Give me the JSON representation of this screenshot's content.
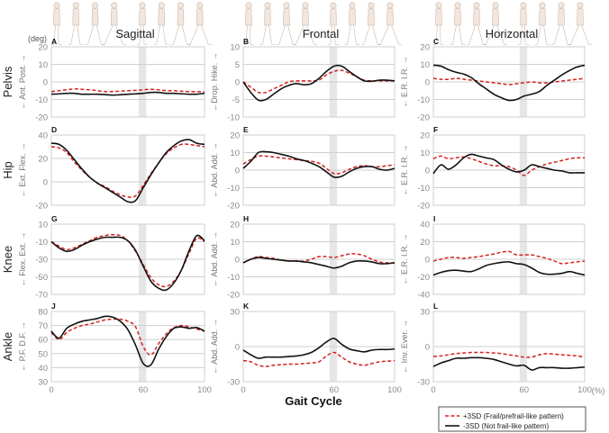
{
  "unit_label": "(deg)",
  "column_titles": [
    "Sagittal",
    "Frontal",
    "Horizontal"
  ],
  "row_labels": [
    "Pelvis",
    "Hip",
    "Knee",
    "Ankle"
  ],
  "xlabel": "Gait Cycle",
  "x_unit": "(%)",
  "legend": {
    "position": "bottom-right",
    "items": [
      {
        "label": "+3SD (Frail/prefrail-like pattern)",
        "color": "#d62020",
        "style": "dashed"
      },
      {
        "label": "-3SD (Not frail-like pattern)",
        "color": "#111111",
        "style": "solid"
      }
    ]
  },
  "colors": {
    "plus3sd": "#d62020",
    "minus3sd": "#111111",
    "shade": "#e6e6e6",
    "figure": "#f3e6dc"
  },
  "chart_data": {
    "type": "line",
    "x": [
      0,
      5,
      10,
      15,
      20,
      25,
      30,
      35,
      40,
      45,
      50,
      55,
      60,
      65,
      70,
      75,
      80,
      85,
      90,
      95,
      100
    ],
    "xlim": [
      0,
      100
    ],
    "xticks": [
      0,
      60,
      100
    ],
    "shaded_region": [
      57,
      62
    ],
    "panels": [
      {
        "letter": "A",
        "ylabel": "← Ant.   Post. →",
        "ylim": [
          -20,
          20
        ],
        "yticks": [
          -20,
          -10,
          0,
          10,
          20
        ],
        "plus3sd": [
          -5.5,
          -5,
          -4.5,
          -4,
          -4.2,
          -4.5,
          -5,
          -5.5,
          -5.5,
          -5.3,
          -5,
          -4.8,
          -4.5,
          -4.2,
          -4.5,
          -5,
          -5,
          -5.3,
          -5.5,
          -5.5,
          -5.8
        ],
        "minus3sd": [
          -7,
          -6.8,
          -6.5,
          -6.5,
          -7,
          -7,
          -7,
          -7.2,
          -7.5,
          -7.3,
          -7,
          -6.8,
          -6.5,
          -6,
          -6,
          -6.5,
          -6.5,
          -6.8,
          -7,
          -7,
          -6.5
        ]
      },
      {
        "letter": "B",
        "ylabel": "←Drop.  Hike. →",
        "ylim": [
          -10,
          10
        ],
        "yticks": [
          -10,
          -5,
          0,
          5,
          10
        ],
        "plus3sd": [
          0,
          -1.5,
          -3,
          -3,
          -2,
          -1,
          0,
          0.3,
          0.3,
          0.3,
          0.5,
          2,
          3,
          3.3,
          2.5,
          1.5,
          0.5,
          0.3,
          0.3,
          0.3,
          0.3
        ],
        "minus3sd": [
          0,
          -3,
          -5.2,
          -5,
          -3.5,
          -2,
          -1,
          -0.5,
          -0.8,
          -0.5,
          1,
          3,
          4.5,
          4.5,
          3,
          1.5,
          0.3,
          0.2,
          0.5,
          0.5,
          0.3
        ]
      },
      {
        "letter": "C",
        "ylabel": "← E.R.  I.R. →",
        "ylim": [
          -20,
          20
        ],
        "yticks": [
          -20,
          -10,
          0,
          10,
          20
        ],
        "plus3sd": [
          2,
          1.5,
          1.5,
          2,
          1.5,
          1,
          0.5,
          0,
          -0.5,
          -1,
          -1.5,
          -1,
          -0.5,
          0,
          -0.5,
          -0.5,
          0,
          0.5,
          1,
          1.5,
          2
        ],
        "minus3sd": [
          9.5,
          9,
          7,
          5.5,
          4.5,
          2.5,
          -1,
          -4,
          -7,
          -9,
          -10.5,
          -10,
          -8,
          -7,
          -5.5,
          -2,
          1,
          4,
          6.5,
          8.5,
          9.5
        ]
      },
      {
        "letter": "D",
        "ylabel": "← Ext.  Flex. →",
        "ylim": [
          -20,
          40
        ],
        "yticks": [
          -20,
          0,
          20,
          40
        ],
        "plus3sd": [
          30,
          29,
          25,
          17,
          10,
          4,
          -1,
          -4,
          -8,
          -11,
          -13,
          -12,
          -3,
          7,
          16,
          24,
          29,
          32,
          32,
          31,
          30
        ],
        "minus3sd": [
          33,
          32,
          27,
          19,
          11,
          4,
          -1,
          -5,
          -9,
          -13,
          -17,
          -16,
          -5,
          6,
          16,
          25,
          31,
          35,
          36,
          33,
          32
        ]
      },
      {
        "letter": "E",
        "ylabel": "← Abd.  Add. →",
        "ylim": [
          -20,
          20
        ],
        "yticks": [
          -20,
          -10,
          0,
          10,
          20
        ],
        "plus3sd": [
          3.5,
          6,
          8,
          8,
          7.5,
          7,
          6.5,
          6,
          5.5,
          5,
          4,
          1,
          -2,
          -1.5,
          0.5,
          2,
          2.5,
          2,
          2,
          2.5,
          3
        ],
        "minus3sd": [
          1,
          5,
          10,
          10.5,
          10,
          9,
          8,
          6.5,
          5.5,
          4,
          2,
          -1,
          -4,
          -3.5,
          -1,
          1,
          2,
          2,
          0.5,
          0,
          1
        ]
      },
      {
        "letter": "F",
        "ylabel": "← E.R.  I.R. →",
        "ylim": [
          -20,
          20
        ],
        "yticks": [
          -20,
          -10,
          0,
          10,
          20
        ],
        "plus3sd": [
          6.5,
          8,
          6.5,
          7,
          7.5,
          6.5,
          5,
          3.5,
          2.5,
          2.5,
          2,
          0,
          -3,
          0,
          2,
          3.5,
          4.5,
          5.5,
          6.5,
          7,
          7
        ],
        "minus3sd": [
          -2,
          3,
          0.5,
          3,
          7,
          9,
          8,
          7,
          6,
          3,
          0.5,
          -1,
          0,
          3,
          2,
          1,
          0,
          -0.5,
          -1.5,
          -1.5,
          -1.5
        ]
      },
      {
        "letter": "G",
        "ylabel": "← Flex.  Ext. →",
        "ylim": [
          -70,
          10
        ],
        "yticks": [
          -70,
          -50,
          -30,
          -10,
          10
        ],
        "plus3sd": [
          -10,
          -15,
          -19,
          -17,
          -13,
          -9,
          -5,
          -3,
          -2,
          -3,
          -9,
          -21,
          -36,
          -51,
          -59,
          -61,
          -55,
          -42,
          -23,
          -6,
          -10
        ],
        "minus3sd": [
          -10,
          -17,
          -21,
          -19,
          -14,
          -10,
          -7,
          -5,
          -5,
          -5,
          -9,
          -20,
          -38,
          -55,
          -63,
          -65,
          -57,
          -42,
          -20,
          -3,
          -9
        ]
      },
      {
        "letter": "H",
        "ylabel": "← Abd.  Add. →",
        "ylim": [
          -20,
          20
        ],
        "yticks": [
          -20,
          -10,
          0,
          10,
          20
        ],
        "plus3sd": [
          -2,
          0,
          1.5,
          1,
          0.5,
          -0.5,
          -1,
          -1,
          -1,
          0,
          1.5,
          1.5,
          1,
          2,
          3,
          3,
          2,
          0,
          -1.5,
          -2,
          -2
        ],
        "minus3sd": [
          -2,
          0,
          1,
          0.5,
          0,
          -0.5,
          -1,
          -1,
          -1.5,
          -2,
          -3,
          -4,
          -5,
          -4,
          -2,
          -1,
          -1,
          -1.5,
          -2.5,
          -2.5,
          -2
        ]
      },
      {
        "letter": "I",
        "ylabel": "← E.R.  I.R. →",
        "ylim": [
          -40,
          40
        ],
        "yticks": [
          -40,
          -20,
          0,
          20,
          40
        ],
        "plus3sd": [
          -2,
          0,
          2,
          2,
          1,
          2,
          3,
          4.5,
          6,
          8,
          9,
          5,
          5,
          5,
          3,
          1,
          -2,
          -5,
          -4,
          -3,
          -2
        ],
        "minus3sd": [
          -18,
          -15,
          -13,
          -12.5,
          -13.5,
          -14,
          -11,
          -7,
          -5,
          -3.5,
          -3,
          -5,
          -6,
          -10,
          -15,
          -17,
          -17,
          -16,
          -14,
          -16,
          -18
        ]
      },
      {
        "letter": "J",
        "ylabel": "← P.F.  D.F. →",
        "ylim": [
          30,
          80
        ],
        "yticks": [
          30,
          40,
          50,
          60,
          70,
          80
        ],
        "plus3sd": [
          65,
          60,
          65,
          68,
          70,
          71,
          72.5,
          74,
          74.5,
          74.5,
          73,
          69,
          55,
          49,
          57,
          64,
          68.5,
          70,
          69,
          67.5,
          66
        ],
        "minus3sd": [
          66,
          61,
          68,
          71,
          73,
          74,
          75,
          76.5,
          76,
          73,
          67,
          56,
          43,
          42,
          53,
          62,
          68,
          69,
          68,
          68.5,
          66
        ]
      },
      {
        "letter": "K",
        "ylabel": "← Abd.  Add. →",
        "ylim": [
          -30,
          30
        ],
        "yticks": [
          -30,
          0,
          30
        ],
        "plus3sd": [
          -12,
          -13,
          -16,
          -17,
          -16,
          -15.5,
          -15,
          -15,
          -14.5,
          -14,
          -13,
          -8,
          -5,
          -9,
          -13,
          -15,
          -16,
          -14.5,
          -13,
          -12.5,
          -12
        ],
        "minus3sd": [
          -3,
          -7,
          -10,
          -9,
          -9,
          -9,
          -8.5,
          -8,
          -7,
          -5,
          -1,
          4,
          7,
          2,
          -2,
          -3.5,
          -4.5,
          -3,
          -2.5,
          -2.5,
          -2
        ]
      },
      {
        "letter": "L",
        "ylabel": "← Inv.  Ever. →",
        "ylim": [
          -30,
          30
        ],
        "yticks": [
          -30,
          0,
          30
        ],
        "plus3sd": [
          -8.5,
          -8,
          -7,
          -6,
          -5.5,
          -5,
          -5,
          -5,
          -5.5,
          -6,
          -7,
          -8,
          -9,
          -9,
          -7,
          -6,
          -6.5,
          -7,
          -7.5,
          -8,
          -9
        ],
        "minus3sd": [
          -17,
          -14,
          -12,
          -10,
          -10,
          -9.5,
          -9.5,
          -10,
          -11,
          -13,
          -15,
          -16.5,
          -16,
          -20,
          -18,
          -18,
          -18,
          -18.5,
          -18.5,
          -18,
          -17.5
        ]
      }
    ]
  }
}
